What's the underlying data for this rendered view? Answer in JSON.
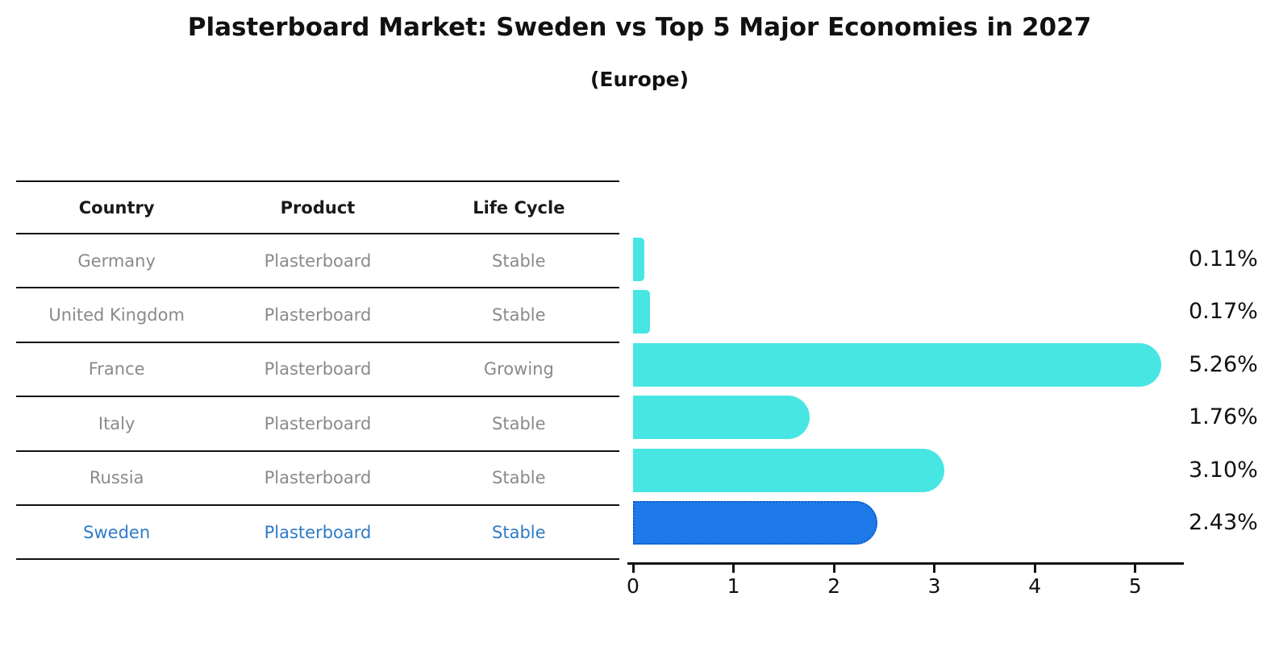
{
  "title": "Plasterboard Market: Sweden vs Top 5 Major Economies in 2027",
  "subtitle": "(Europe)",
  "table": {
    "headers": [
      "Country",
      "Product",
      "Life Cycle"
    ],
    "rows": [
      {
        "country": "Germany",
        "product": "Plasterboard",
        "life_cycle": "Stable",
        "highlighted": false
      },
      {
        "country": "United Kingdom",
        "product": "Plasterboard",
        "life_cycle": "Stable",
        "highlighted": false
      },
      {
        "country": "France",
        "product": "Plasterboard",
        "life_cycle": "Growing",
        "highlighted": false
      },
      {
        "country": "Italy",
        "product": "Plasterboard",
        "life_cycle": "Stable",
        "highlighted": false
      },
      {
        "country": "Russia",
        "product": "Plasterboard",
        "life_cycle": "Stable",
        "highlighted": false
      },
      {
        "country": "Sweden",
        "product": "Plasterboard",
        "life_cycle": "Stable",
        "highlighted": true
      }
    ]
  },
  "chart_data": {
    "type": "bar",
    "orientation": "horizontal",
    "title": "Plasterboard Market: Sweden vs Top 5 Major Economies in 2027 (Europe)",
    "categories": [
      "Germany",
      "United Kingdom",
      "France",
      "Italy",
      "Russia",
      "Sweden"
    ],
    "values": [
      0.11,
      0.17,
      5.26,
      1.76,
      3.1,
      2.43
    ],
    "value_labels": [
      "0.11%",
      "0.17%",
      "5.26%",
      "1.76%",
      "3.10%",
      "2.43%"
    ],
    "x_ticks": [
      0,
      1,
      2,
      3,
      4,
      5
    ],
    "xlim": [
      0,
      5.5
    ],
    "grid": false,
    "legend": false,
    "bar_color": "#48E6E3",
    "highlight_bar_color": "#1E7AE8",
    "highlight_index": 5
  },
  "colors": {
    "title_text": "#111111",
    "table_header_text": "#1a1a1a",
    "table_body_text": "#8a8a8a",
    "highlight_text": "#2E7BC7",
    "highlight_border": "#1258C9",
    "axis": "#111111",
    "background": "#ffffff"
  }
}
